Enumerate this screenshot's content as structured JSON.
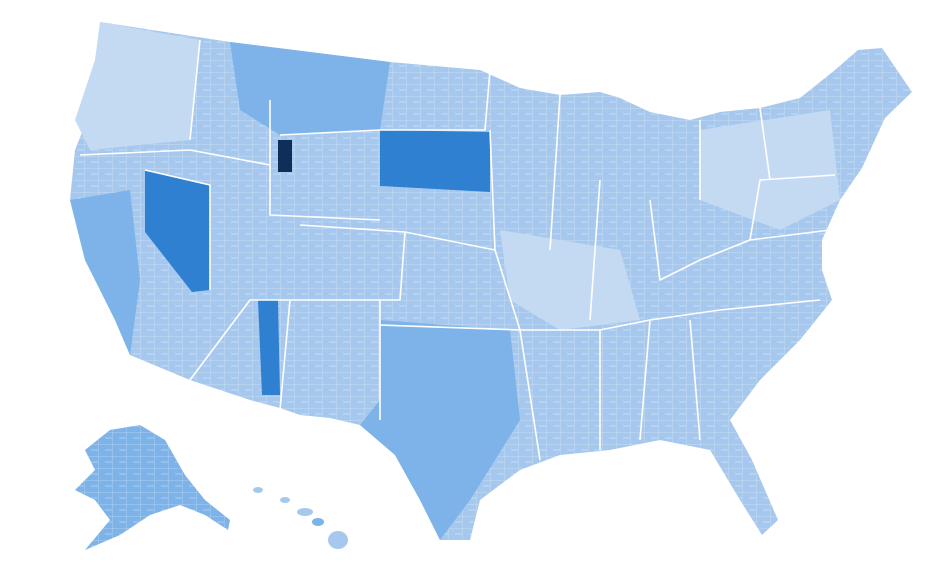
{
  "map": {
    "colors": [
      "#c4daf3",
      "#a6c8ee",
      "#7db3e8",
      "#2f80d0",
      "#0d2f5a"
    ]
  }
}
